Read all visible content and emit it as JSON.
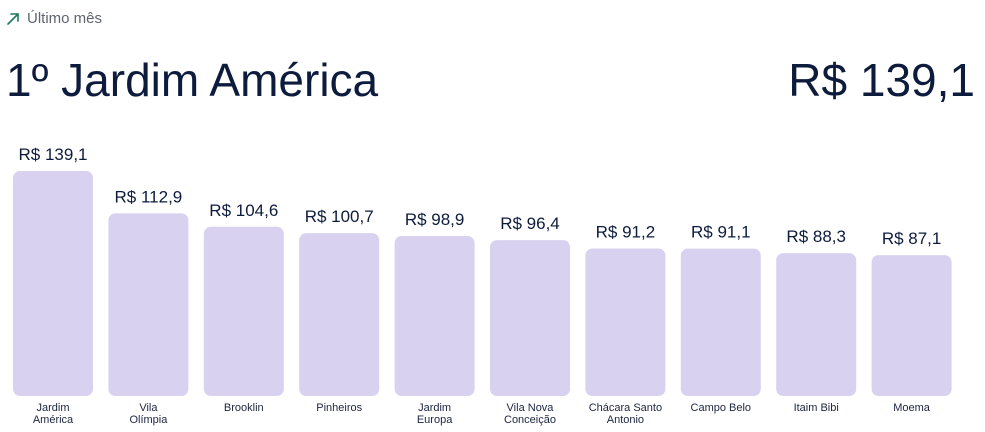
{
  "header": {
    "period_label": "Último mês",
    "period_icon": "trend-up-arrow-icon",
    "headline": "1º Jardim América",
    "headline_value": "R$ 139,1"
  },
  "colors": {
    "bar": "#d8d2f0",
    "text": "#0d1b3d",
    "icon": "#1d7a5a"
  },
  "chart_data": {
    "type": "bar",
    "categories": [
      "Jardim\nAmérica",
      "Vila\nOlímpia",
      "Brooklin",
      "Pinheiros",
      "Jardim\nEuropa",
      "Vila Nova\nConceição",
      "Chácara Santo\nAntonio",
      "Campo Belo",
      "Itaim Bibi",
      "Moema"
    ],
    "values": [
      139.1,
      112.9,
      104.6,
      100.7,
      98.9,
      96.4,
      91.2,
      91.1,
      88.3,
      87.1
    ],
    "value_labels": [
      "R$ 139,1",
      "R$ 112,9",
      "R$ 104,6",
      "R$ 100,7",
      "R$ 98,9",
      "R$ 96,4",
      "R$ 91,2",
      "R$ 91,1",
      "R$ 88,3",
      "R$ 87,1"
    ],
    "ylim": [
      0,
      139.1
    ],
    "grid": false,
    "legend": "none"
  }
}
